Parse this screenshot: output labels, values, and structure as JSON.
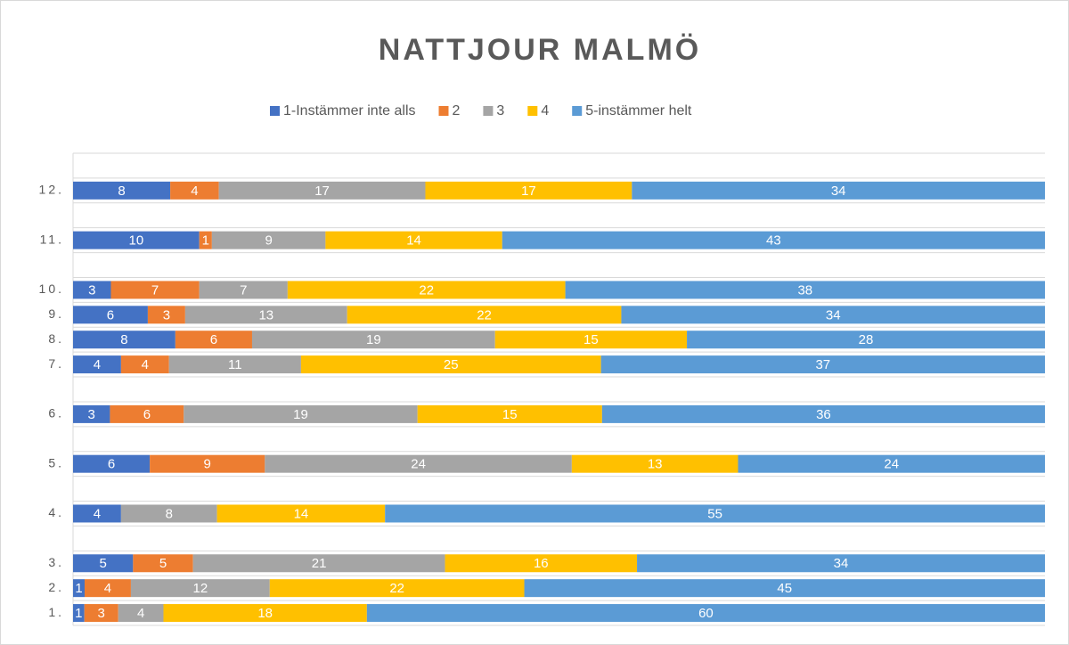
{
  "chart_data": {
    "type": "bar",
    "orientation": "horizontal",
    "stacked": "percent",
    "title": "NATTJOUR MALMÖ",
    "categories": [
      "1.",
      "2.",
      "3.",
      null,
      "4.",
      null,
      "5.",
      null,
      "6.",
      null,
      "7.",
      "8.",
      "9.",
      "10.",
      null,
      "11.",
      null,
      "12.",
      null
    ],
    "series": [
      {
        "name": "1-Instämmer inte alls",
        "color": "#4472c4",
        "values": [
          1,
          1,
          5,
          null,
          4,
          null,
          6,
          null,
          3,
          null,
          4,
          8,
          6,
          3,
          null,
          10,
          null,
          8,
          null
        ]
      },
      {
        "name": "2",
        "color": "#ed7d31",
        "values": [
          3,
          4,
          5,
          null,
          null,
          null,
          9,
          null,
          6,
          null,
          4,
          6,
          3,
          7,
          null,
          1,
          null,
          4,
          null
        ]
      },
      {
        "name": "3",
        "color": "#a5a5a5",
        "values": [
          4,
          12,
          21,
          null,
          8,
          null,
          24,
          null,
          19,
          null,
          11,
          19,
          13,
          7,
          null,
          9,
          null,
          17,
          null
        ]
      },
      {
        "name": "4",
        "color": "#ffc000",
        "values": [
          18,
          22,
          16,
          null,
          14,
          null,
          13,
          null,
          15,
          null,
          25,
          15,
          22,
          22,
          null,
          14,
          null,
          17,
          null
        ]
      },
      {
        "name": "5-instämmer helt",
        "color": "#5b9bd5",
        "values": [
          60,
          45,
          34,
          null,
          55,
          null,
          24,
          null,
          36,
          null,
          37,
          28,
          34,
          38,
          null,
          43,
          null,
          34,
          null
        ]
      }
    ],
    "xlim": [
      0,
      100
    ],
    "legend": "top"
  }
}
